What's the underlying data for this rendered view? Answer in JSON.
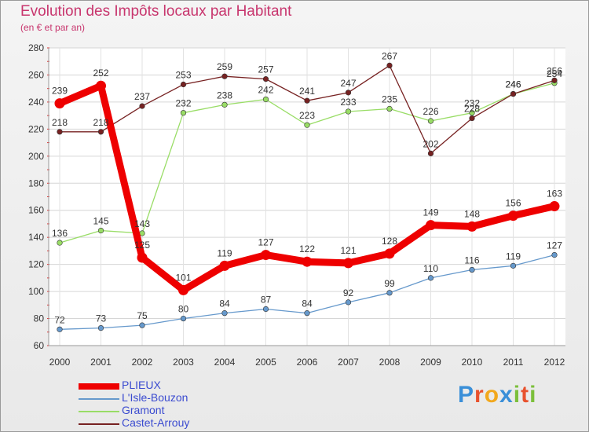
{
  "chart_data": {
    "type": "line",
    "title": "Evolution des Impôts locaux par Habitant",
    "subtitle": "(en € et par an)",
    "x": [
      "2000",
      "2001",
      "2002",
      "2003",
      "2004",
      "2005",
      "2006",
      "2007",
      "2008",
      "2009",
      "2010",
      "2011",
      "2012"
    ],
    "ylim": [
      60,
      280
    ],
    "yticks": [
      60,
      80,
      100,
      120,
      140,
      160,
      180,
      200,
      220,
      240,
      260,
      280
    ],
    "grid": true,
    "series": [
      {
        "name": "PLIEUX",
        "color": "#ee0000",
        "values": [
          239,
          252,
          125,
          101,
          119,
          127,
          122,
          121,
          128,
          149,
          148,
          156,
          163
        ]
      },
      {
        "name": "L'Isle-Bouzon",
        "color": "#6699cc",
        "values": [
          72,
          73,
          75,
          80,
          84,
          87,
          84,
          92,
          99,
          110,
          116,
          119,
          127
        ]
      },
      {
        "name": "Gramont",
        "color": "#99dd66",
        "values": [
          136,
          145,
          143,
          232,
          238,
          242,
          223,
          233,
          235,
          226,
          232,
          246,
          254
        ]
      },
      {
        "name": "Castet-Arrouy",
        "color": "#772222",
        "values": [
          218,
          218,
          237,
          253,
          259,
          257,
          241,
          247,
          267,
          202,
          228,
          246,
          256
        ]
      }
    ]
  },
  "logo": {
    "letters": [
      "P",
      "r",
      "o",
      "x",
      "i",
      "t",
      "i"
    ],
    "colors": [
      "#3a8fd8",
      "#e8522e",
      "#f2a81d",
      "#3a8fd8",
      "#7bbf3a",
      "#e8522e",
      "#7bbf3a"
    ]
  }
}
